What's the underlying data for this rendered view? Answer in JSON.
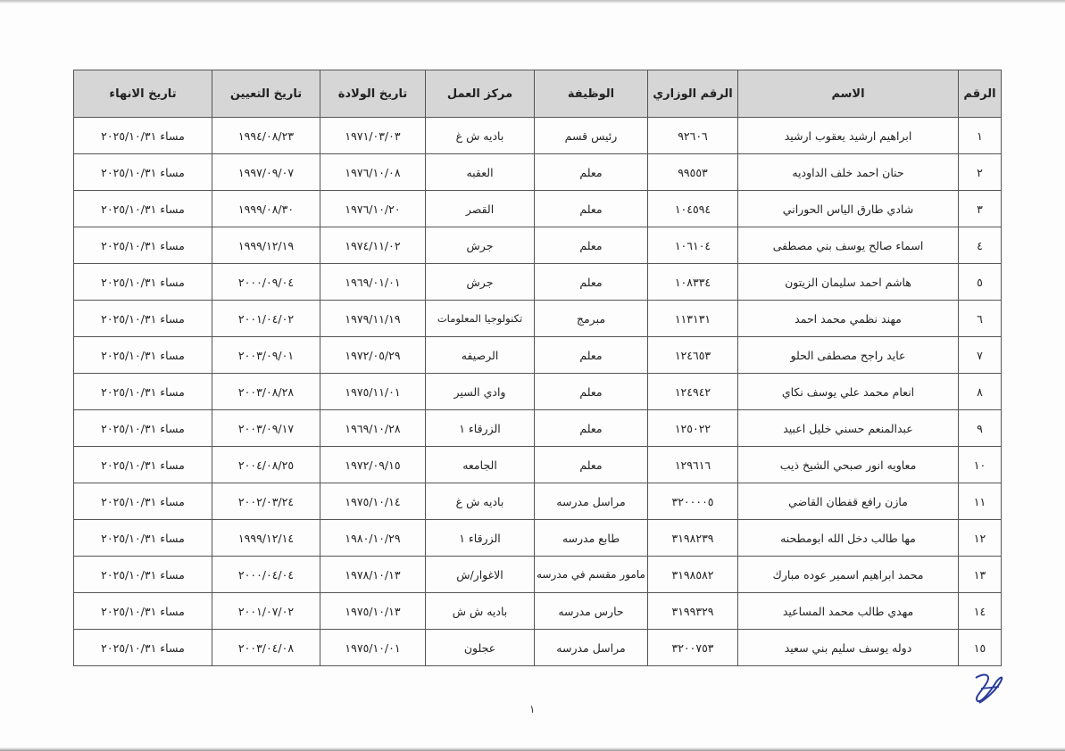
{
  "table": {
    "headers": [
      "الرقم",
      "الاسم",
      "الرقم الوزاري",
      "الوظيفة",
      "مركز العمل",
      "تاريخ الولادة",
      "تاريخ التعيين",
      "تاريخ الانهاء"
    ],
    "rows": [
      [
        "١",
        "ابراهيم ارشيد يعقوب ارشيد",
        "٩٢٦٠٦",
        "رئيس قسم",
        "باديه ش غ",
        "١٩٧١/٠٣/٠٣",
        "١٩٩٤/٠٨/٢٣",
        "مساء ٢٠٢٥/١٠/٣١"
      ],
      [
        "٢",
        "حنان احمد خلف الداوديه",
        "٩٩٥٥٣",
        "معلم",
        "العقبه",
        "١٩٧٦/١٠/٠٨",
        "١٩٩٧/٠٩/٠٧",
        "مساء ٢٠٢٥/١٠/٣١"
      ],
      [
        "٣",
        "شادي طارق الياس الحوراني",
        "١٠٤٥٩٤",
        "معلم",
        "القصر",
        "١٩٧٦/١٠/٢٠",
        "١٩٩٩/٠٨/٣٠",
        "مساء ٢٠٢٥/١٠/٣١"
      ],
      [
        "٤",
        "اسماء صالح يوسف بني مصطفى",
        "١٠٦١٠٤",
        "معلم",
        "جرش",
        "١٩٧٤/١١/٠٢",
        "١٩٩٩/١٢/١٩",
        "مساء ٢٠٢٥/١٠/٣١"
      ],
      [
        "٥",
        "هاشم احمد سليمان الزيتون",
        "١٠٨٣٣٤",
        "معلم",
        "جرش",
        "١٩٦٩/٠١/٠١",
        "٢٠٠٠/٠٩/٠٤",
        "مساء ٢٠٢٥/١٠/٣١"
      ],
      [
        "٦",
        "مهند نظمي محمد احمد",
        "١١٣١٣١",
        "مبرمج",
        "تكنولوجيا المعلومات",
        "١٩٧٩/١١/١٩",
        "٢٠٠١/٠٤/٠٢",
        "مساء ٢٠٢٥/١٠/٣١"
      ],
      [
        "٧",
        "عايد راجح مصطفى الحلو",
        "١٢٤٦٥٣",
        "معلم",
        "الرصيفه",
        "١٩٧٢/٠٥/٢٩",
        "٢٠٠٣/٠٩/٠١",
        "مساء ٢٠٢٥/١٠/٣١"
      ],
      [
        "٨",
        "انعام محمد علي يوسف نكاي",
        "١٢٤٩٤٢",
        "معلم",
        "وادي السير",
        "١٩٧٥/١١/٠١",
        "٢٠٠٣/٠٨/٢٨",
        "مساء ٢٠٢٥/١٠/٣١"
      ],
      [
        "٩",
        "عبدالمنعم حسني خليل اعبيد",
        "١٢٥٠٢٢",
        "معلم",
        "الزرقاء ١",
        "١٩٦٩/١٠/٢٨",
        "٢٠٠٣/٠٩/١٧",
        "مساء ٢٠٢٥/١٠/٣١"
      ],
      [
        "١٠",
        "معاويه انور صبحي الشيخ ذيب",
        "١٢٩٦١٦",
        "معلم",
        "الجامعه",
        "١٩٧٢/٠٩/١٥",
        "٢٠٠٤/٠٨/٢٥",
        "مساء ٢٠٢٥/١٠/٣١"
      ],
      [
        "١١",
        "مازن رافع قفطان القاضي",
        "٣٢٠٠٠٠٥",
        "مراسل مدرسه",
        "باديه ش غ",
        "١٩٧٥/١٠/١٤",
        "٢٠٠٢/٠٣/٢٤",
        "مساء ٢٠٢٥/١٠/٣١"
      ],
      [
        "١٢",
        "مها طالب دخل الله ابومطحنه",
        "٣١٩٨٢٣٩",
        "طابع مدرسه",
        "الزرقاء ١",
        "١٩٨٠/١٠/٢٩",
        "١٩٩٩/١٢/١٤",
        "مساء ٢٠٢٥/١٠/٣١"
      ],
      [
        "١٣",
        "محمد ابراهيم اسمير عوده مبارك",
        "٣١٩٨٥٨٢",
        "مامور مقسم في مدرسه",
        "الاغوار/ش",
        "١٩٧٨/١٠/١٣",
        "٢٠٠٠/٠٤/٠٤",
        "مساء ٢٠٢٥/١٠/٣١"
      ],
      [
        "١٤",
        "مهدي طالب محمد المساعيد",
        "٣١٩٩٣٢٩",
        "حارس مدرسه",
        "باديه ش ش",
        "١٩٧٥/١٠/١٣",
        "٢٠٠١/٠٧/٠٢",
        "مساء ٢٠٢٥/١٠/٣١"
      ],
      [
        "١٥",
        "دوله يوسف سليم بني سعيد",
        "٣٢٠٠٧٥٣",
        "مراسل مدرسه",
        "عجلون",
        "١٩٧٥/١٠/٠١",
        "٢٠٠٣/٠٤/٠٨",
        "مساء ٢٠٢٥/١٠/٣١"
      ]
    ]
  },
  "page_number": "١",
  "signature_icon": "handwritten-signature"
}
